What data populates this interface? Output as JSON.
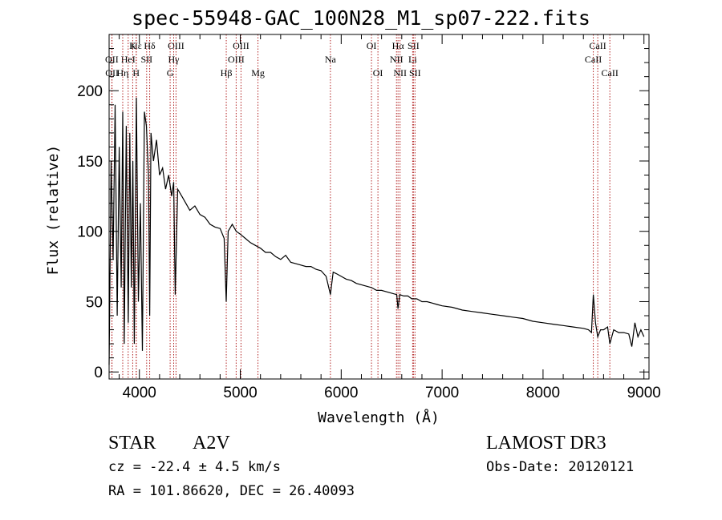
{
  "chart_data": {
    "type": "line",
    "title": "spec-55948-GAC_100N28_M1_sp07-222.fits",
    "xlabel": "Wavelength (Å)",
    "ylabel": "Flux (relative)",
    "xlim": [
      3700,
      9050
    ],
    "ylim": [
      -5,
      240
    ],
    "x_ticks": [
      4000,
      5000,
      6000,
      7000,
      8000,
      9000
    ],
    "y_ticks": [
      0,
      50,
      100,
      150,
      200
    ],
    "series": [
      {
        "name": "spectrum",
        "x": [
          3700,
          3720,
          3740,
          3760,
          3780,
          3800,
          3820,
          3835,
          3850,
          3870,
          3890,
          3905,
          3920,
          3935,
          3950,
          3970,
          3990,
          4010,
          4030,
          4050,
          4070,
          4090,
          4102,
          4115,
          4140,
          4170,
          4200,
          4230,
          4260,
          4290,
          4320,
          4340,
          4355,
          4380,
          4420,
          4460,
          4500,
          4550,
          4600,
          4650,
          4700,
          4750,
          4800,
          4840,
          4861,
          4880,
          4920,
          4960,
          5000,
          5050,
          5100,
          5150,
          5200,
          5250,
          5300,
          5350,
          5400,
          5450,
          5500,
          5550,
          5600,
          5650,
          5700,
          5750,
          5800,
          5850,
          5893,
          5920,
          5950,
          6000,
          6050,
          6100,
          6150,
          6200,
          6250,
          6300,
          6350,
          6400,
          6450,
          6500,
          6550,
          6563,
          6580,
          6620,
          6660,
          6700,
          6750,
          6800,
          6850,
          6900,
          6950,
          7000,
          7100,
          7200,
          7300,
          7400,
          7500,
          7600,
          7700,
          7800,
          7900,
          8000,
          8100,
          8200,
          8300,
          8400,
          8450,
          8480,
          8498,
          8520,
          8542,
          8570,
          8600,
          8640,
          8662,
          8700,
          8750,
          8800,
          8850,
          8880,
          8910,
          8940,
          8970,
          9000
        ],
        "y": [
          5,
          150,
          80,
          190,
          40,
          160,
          60,
          185,
          20,
          175,
          35,
          170,
          60,
          150,
          20,
          195,
          50,
          120,
          15,
          185,
          175,
          140,
          40,
          170,
          150,
          165,
          140,
          145,
          130,
          140,
          125,
          135,
          55,
          130,
          125,
          120,
          115,
          118,
          112,
          110,
          105,
          103,
          102,
          95,
          50,
          100,
          105,
          100,
          98,
          95,
          92,
          90,
          88,
          85,
          85,
          82,
          80,
          83,
          78,
          77,
          76,
          75,
          75,
          73,
          72,
          68,
          55,
          71,
          70,
          68,
          66,
          65,
          63,
          62,
          61,
          60,
          58,
          58,
          57,
          56,
          55,
          45,
          55,
          54,
          54,
          52,
          52,
          50,
          50,
          49,
          48,
          47,
          46,
          44,
          43,
          42,
          41,
          40,
          39,
          38,
          36,
          35,
          34,
          33,
          32,
          31,
          30,
          28,
          55,
          35,
          25,
          30,
          30,
          32,
          20,
          30,
          28,
          28,
          27,
          18,
          35,
          25,
          30,
          25
        ]
      }
    ],
    "lines": [
      {
        "name": "Hε",
        "wavelength": 3970,
        "row": 1
      },
      {
        "name": "K",
        "wavelength": 3934,
        "row": 1
      },
      {
        "name": "Hδ",
        "wavelength": 4102,
        "row": 1
      },
      {
        "name": "OIII",
        "wavelength": 4363,
        "row": 1
      },
      {
        "name": "OIII",
        "wavelength": 5007,
        "row": 1
      },
      {
        "name": "OI",
        "wavelength": 6300,
        "row": 1
      },
      {
        "name": "Hα",
        "wavelength": 6563,
        "row": 1
      },
      {
        "name": "SII",
        "wavelength": 6716,
        "row": 1
      },
      {
        "name": "CaII",
        "wavelength": 8542,
        "row": 1
      },
      {
        "name": "OII",
        "wavelength": 3727,
        "row": 2
      },
      {
        "name": "HeI",
        "wavelength": 3889,
        "row": 2
      },
      {
        "name": "SII",
        "wavelength": 4072,
        "row": 2
      },
      {
        "name": "Hγ",
        "wavelength": 4340,
        "row": 2
      },
      {
        "name": "OIII",
        "wavelength": 4959,
        "row": 2
      },
      {
        "name": "Na",
        "wavelength": 5893,
        "row": 2
      },
      {
        "name": "NII",
        "wavelength": 6548,
        "row": 2
      },
      {
        "name": "Li",
        "wavelength": 6708,
        "row": 2
      },
      {
        "name": "CaII",
        "wavelength": 8498,
        "row": 2
      },
      {
        "name": "OII",
        "wavelength": 3729,
        "row": 3
      },
      {
        "name": "Hη",
        "wavelength": 3835,
        "row": 3
      },
      {
        "name": "H",
        "wavelength": 3968,
        "row": 3
      },
      {
        "name": "G",
        "wavelength": 4305,
        "row": 3
      },
      {
        "name": "Hβ",
        "wavelength": 4861,
        "row": 3
      },
      {
        "name": "Mg",
        "wavelength": 5175,
        "row": 3
      },
      {
        "name": "OI",
        "wavelength": 6364,
        "row": 3
      },
      {
        "name": "NII",
        "wavelength": 6583,
        "row": 3
      },
      {
        "name": "SII",
        "wavelength": 6731,
        "row": 3
      },
      {
        "name": "CaII",
        "wavelength": 8662,
        "row": 3
      }
    ]
  },
  "info": {
    "object_class": "STAR",
    "subclass": "A2V",
    "survey": "LAMOST DR3",
    "redshift": "cz = -22.4 ± 4.5 km/s",
    "obs_date": "Obs-Date: 20120121",
    "coords": "RA = 101.86620, DEC =  26.40093"
  },
  "colors": {
    "spectrum": "#000000",
    "line_markers": "#b22222"
  }
}
